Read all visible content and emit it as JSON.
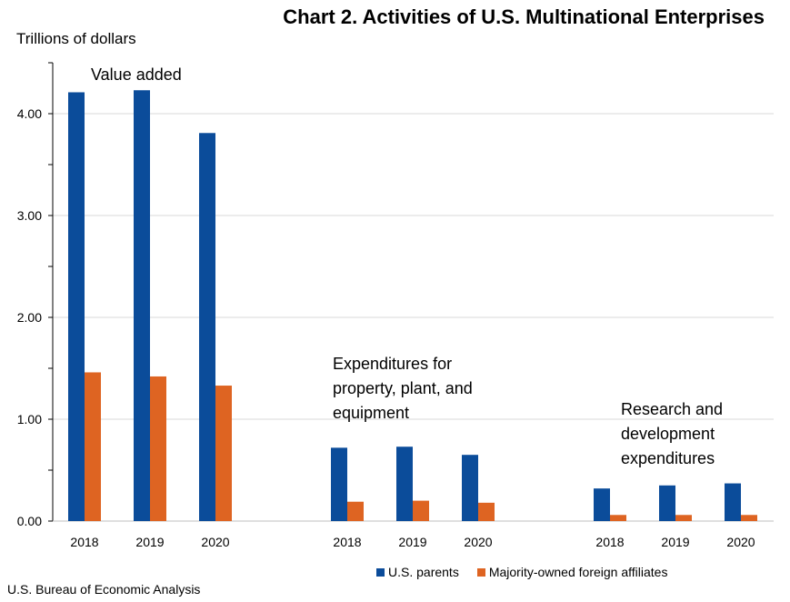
{
  "title": "Chart 2. Activities of U.S. Multinational Enterprises",
  "source": "U.S. Bureau of Economic Analysis",
  "colors": {
    "us_parents": "#0b4c9a",
    "affiliates": "#de6422",
    "grid": "#d9d9d9",
    "axis": "#000000"
  },
  "legend": [
    {
      "label": "U.S. parents",
      "color": "#0b4c9a"
    },
    {
      "label": "Majority-owned foreign affiliates",
      "color": "#de6422"
    }
  ],
  "chart_data": {
    "type": "bar",
    "title": "Chart 2. Activities of U.S. Multinational Enterprises",
    "ylabel": "Trillions of dollars",
    "ylim": [
      0,
      4.5
    ],
    "yticks": [
      "0.00",
      "1.00",
      "2.00",
      "3.00",
      "4.00"
    ],
    "grid": true,
    "legend_position": "bottom-right",
    "groups": [
      {
        "label": "Value added",
        "categories": [
          "2018",
          "2019",
          "2020"
        ],
        "series": [
          {
            "name": "U.S. parents",
            "values": [
              4.21,
              4.23,
              3.81
            ]
          },
          {
            "name": "Majority-owned foreign affiliates",
            "values": [
              1.46,
              1.42,
              1.33
            ]
          }
        ]
      },
      {
        "label": "Expenditures for property, plant, and equipment",
        "categories": [
          "2018",
          "2019",
          "2020"
        ],
        "series": [
          {
            "name": "U.S. parents",
            "values": [
              0.72,
              0.73,
              0.65
            ]
          },
          {
            "name": "Majority-owned foreign affiliates",
            "values": [
              0.19,
              0.2,
              0.18
            ]
          }
        ]
      },
      {
        "label": "Research and development expenditures",
        "categories": [
          "2018",
          "2019",
          "2020"
        ],
        "series": [
          {
            "name": "U.S. parents",
            "values": [
              0.32,
              0.35,
              0.37
            ]
          },
          {
            "name": "Majority-owned foreign affiliates",
            "values": [
              0.06,
              0.06,
              0.06
            ]
          }
        ]
      }
    ]
  }
}
